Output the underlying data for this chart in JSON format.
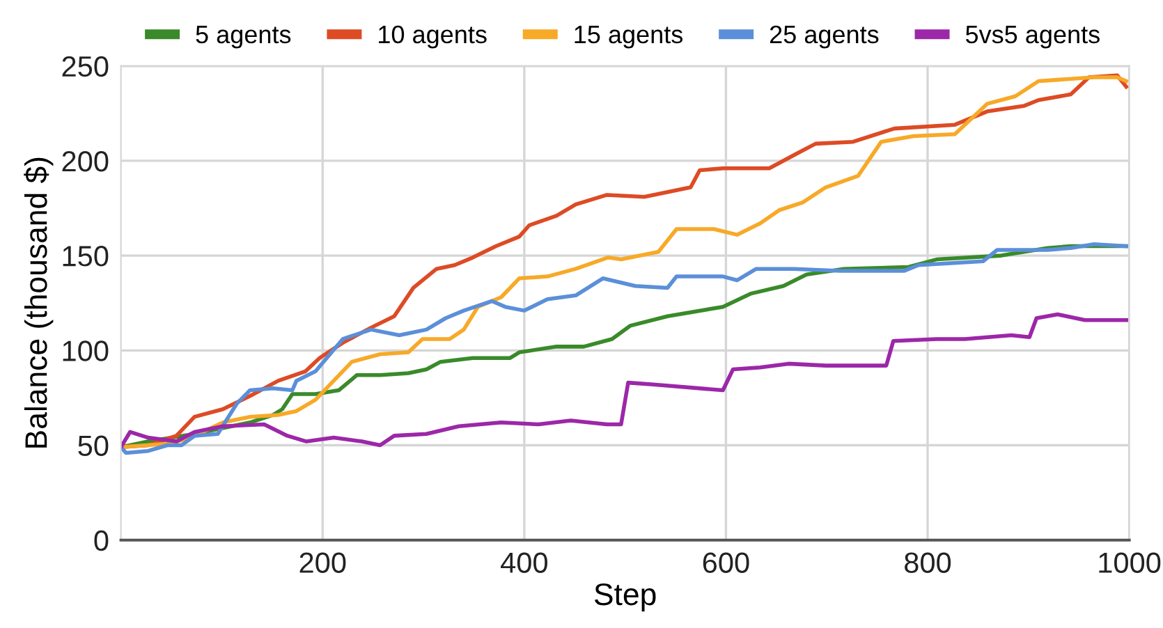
{
  "chart_data": {
    "type": "line",
    "xlabel": "Step",
    "ylabel": "Balance (thousand $)",
    "xlim": [
      0,
      1000
    ],
    "xticks": [
      200,
      400,
      600,
      800,
      1000
    ],
    "ylim": [
      0,
      250
    ],
    "yticks": [
      0,
      50,
      100,
      150,
      200,
      250
    ],
    "grid": true,
    "legend": "top",
    "marker": "none",
    "line_style": "solid",
    "series": [
      {
        "name": "5 agents",
        "color": "#3a8a2a",
        "x": [
          0,
          27,
          73,
          128,
          151,
          160,
          170,
          193,
          216,
          234,
          257,
          285,
          303,
          317,
          349,
          386,
          395,
          432,
          459,
          487,
          505,
          542,
          597,
          625,
          657,
          680,
          717,
          781,
          809,
          873,
          919,
          942,
          997
        ],
        "values": [
          49,
          52,
          56,
          62,
          66,
          69,
          77,
          77,
          79,
          87,
          87,
          88,
          90,
          94,
          96,
          96,
          99,
          102,
          102,
          106,
          113,
          118,
          123,
          130,
          134,
          140,
          143,
          144,
          148,
          150,
          154,
          155,
          155
        ]
      },
      {
        "name": "10 agents",
        "color": "#dd4b25",
        "x": [
          0,
          27,
          55,
          73,
          101,
          128,
          156,
          183,
          197,
          220,
          248,
          271,
          290,
          313,
          331,
          349,
          372,
          395,
          405,
          432,
          451,
          482,
          519,
          565,
          574,
          597,
          643,
          671,
          689,
          726,
          767,
          827,
          859,
          896,
          910,
          942,
          960,
          988,
          997
        ],
        "values": [
          49,
          50,
          55,
          65,
          69,
          76,
          84,
          89,
          96,
          104,
          112,
          118,
          133,
          143,
          145,
          149,
          155,
          160,
          166,
          171,
          177,
          182,
          181,
          186,
          195,
          196,
          196,
          204,
          209,
          210,
          217,
          219,
          226,
          229,
          232,
          235,
          244,
          245,
          239
        ]
      },
      {
        "name": "15 agents",
        "color": "#f7a928",
        "x": [
          0,
          51,
          73,
          101,
          128,
          156,
          174,
          193,
          211,
          229,
          257,
          285,
          299,
          326,
          340,
          354,
          377,
          395,
          423,
          451,
          483,
          496,
          533,
          551,
          588,
          611,
          634,
          653,
          676,
          699,
          731,
          754,
          786,
          827,
          859,
          887,
          910,
          965,
          988,
          997
        ],
        "values": [
          49,
          51,
          55,
          62,
          65,
          66,
          68,
          74,
          84,
          94,
          98,
          99,
          106,
          106,
          111,
          123,
          128,
          138,
          139,
          143,
          149,
          148,
          152,
          164,
          164,
          161,
          167,
          174,
          178,
          186,
          192,
          210,
          213,
          214,
          230,
          234,
          242,
          244,
          244,
          242
        ]
      },
      {
        "name": "25 agents",
        "color": "#5b8fd9",
        "x": [
          0,
          5,
          27,
          46,
          60,
          73,
          96,
          115,
          128,
          151,
          170,
          174,
          193,
          220,
          248,
          276,
          303,
          322,
          340,
          368,
          381,
          400,
          423,
          451,
          478,
          510,
          542,
          551,
          597,
          611,
          630,
          667,
          713,
          777,
          791,
          855,
          869,
          919,
          942,
          965,
          997
        ],
        "values": [
          49,
          46,
          47,
          50,
          50,
          55,
          56,
          72,
          79,
          80,
          79,
          84,
          89,
          106,
          111,
          108,
          111,
          117,
          121,
          126,
          123,
          121,
          127,
          129,
          138,
          134,
          133,
          139,
          139,
          137,
          143,
          143,
          142,
          142,
          145,
          147,
          153,
          153,
          154,
          156,
          155
        ]
      },
      {
        "name": "5vs5 agents",
        "color": "#9c27a8",
        "x": [
          0,
          9,
          27,
          55,
          73,
          101,
          142,
          165,
          184,
          211,
          239,
          257,
          271,
          303,
          335,
          377,
          414,
          446,
          482,
          496,
          503,
          528,
          597,
          607,
          634,
          662,
          699,
          736,
          759,
          766,
          809,
          837,
          883,
          901,
          908,
          929,
          956,
          997
        ],
        "values": [
          49,
          57,
          54,
          52,
          57,
          60,
          61,
          55,
          52,
          54,
          52,
          50,
          55,
          56,
          60,
          62,
          61,
          63,
          61,
          61,
          83,
          82,
          79,
          90,
          91,
          93,
          92,
          92,
          92,
          105,
          106,
          106,
          108,
          107,
          117,
          119,
          116,
          116
        ]
      }
    ]
  }
}
